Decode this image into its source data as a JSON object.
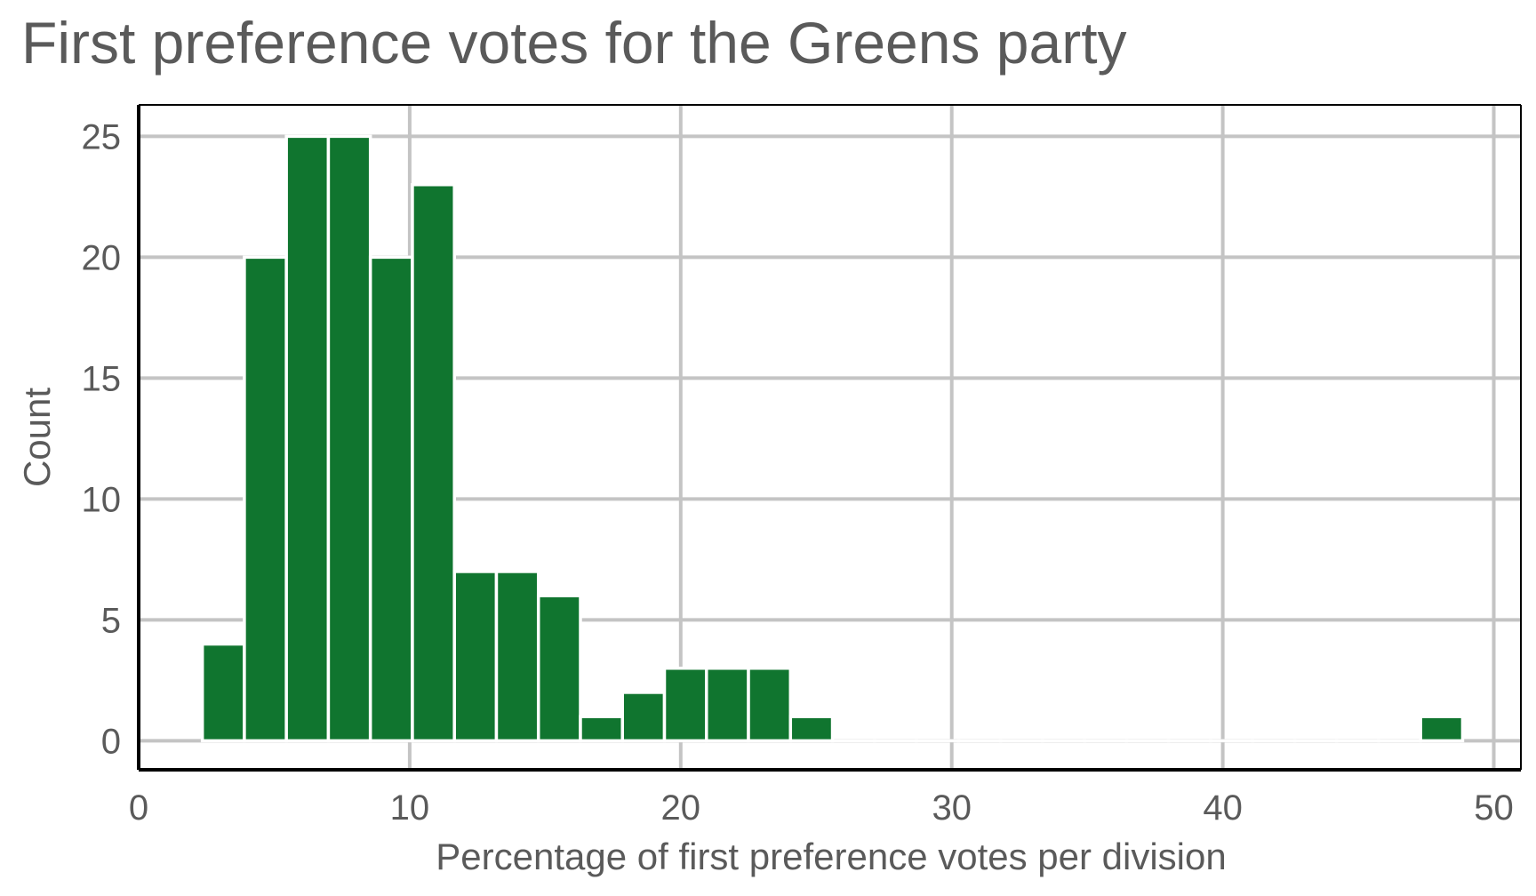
{
  "chart_data": {
    "type": "bar",
    "title": "First preference votes for the Greens party",
    "xlabel": "Percentage of first preference votes per division",
    "ylabel": "Count",
    "xlim": [
      0,
      51
    ],
    "ylim": [
      -1.2,
      26.3
    ],
    "x_ticks": [
      0,
      10,
      20,
      30,
      40,
      50
    ],
    "y_ticks": [
      0,
      5,
      10,
      15,
      20,
      25
    ],
    "grid": true,
    "legend": "none",
    "bar_color": "#10752f",
    "bin_width": 1.55,
    "bin_start": 2.35,
    "bins": [
      {
        "x0": 2.35,
        "count": 4
      },
      {
        "x0": 3.9,
        "count": 20
      },
      {
        "x0": 5.45,
        "count": 25
      },
      {
        "x0": 7.0,
        "count": 25
      },
      {
        "x0": 8.55,
        "count": 20
      },
      {
        "x0": 10.1,
        "count": 23
      },
      {
        "x0": 11.65,
        "count": 7
      },
      {
        "x0": 13.2,
        "count": 7
      },
      {
        "x0": 14.75,
        "count": 6
      },
      {
        "x0": 16.3,
        "count": 1
      },
      {
        "x0": 17.85,
        "count": 2
      },
      {
        "x0": 19.4,
        "count": 3
      },
      {
        "x0": 20.95,
        "count": 3
      },
      {
        "x0": 22.5,
        "count": 3
      },
      {
        "x0": 24.05,
        "count": 1
      },
      {
        "x0": 25.6,
        "count": 0
      },
      {
        "x0": 27.15,
        "count": 0
      },
      {
        "x0": 28.7,
        "count": 0
      },
      {
        "x0": 30.25,
        "count": 0
      },
      {
        "x0": 31.8,
        "count": 0
      },
      {
        "x0": 33.35,
        "count": 0
      },
      {
        "x0": 34.9,
        "count": 0
      },
      {
        "x0": 36.45,
        "count": 0
      },
      {
        "x0": 38.0,
        "count": 0
      },
      {
        "x0": 39.55,
        "count": 0
      },
      {
        "x0": 41.1,
        "count": 0
      },
      {
        "x0": 42.65,
        "count": 0
      },
      {
        "x0": 44.2,
        "count": 0
      },
      {
        "x0": 45.75,
        "count": 0
      },
      {
        "x0": 47.3,
        "count": 1
      }
    ]
  }
}
